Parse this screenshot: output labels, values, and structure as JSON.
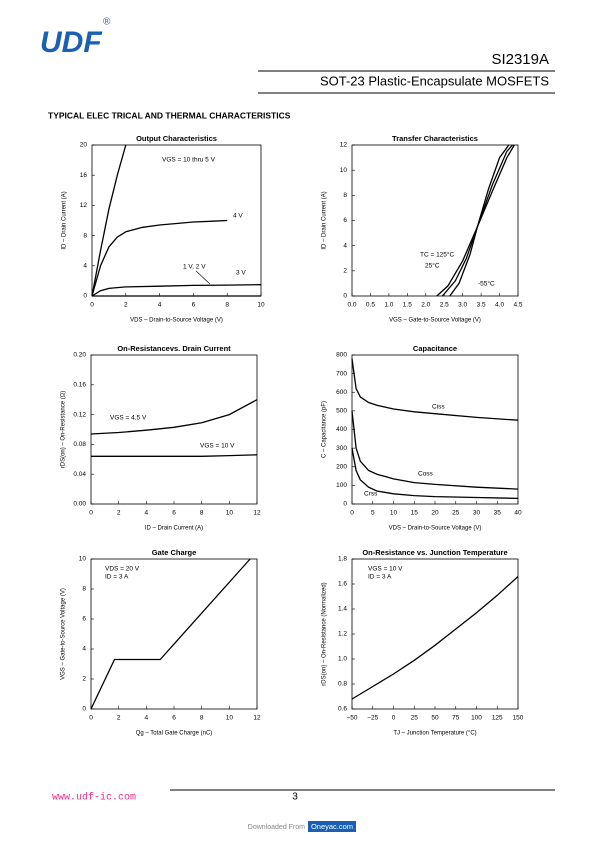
{
  "header": {
    "logo": "UDF",
    "registered": "®",
    "part": "SI2319A",
    "subtitle": "SOT-23 Plastic-Encapsulate MOSFETS"
  },
  "section_title": "TYPICAL ELEC TRICAL AND THERMAL CHARACTERISTICS",
  "charts": [
    {
      "type": "line",
      "title": "Output Characteristics",
      "xlabel": "VDS – Drain-to-Source Voltage (V)",
      "ylabel": "ID – Drain Current (A)",
      "xlim": [
        0,
        10
      ],
      "ylim": [
        0,
        20
      ],
      "xticks": [
        0,
        2,
        4,
        6,
        8,
        10
      ],
      "yticks": [
        0,
        4,
        8,
        12,
        16,
        20
      ],
      "series": [
        {
          "name": "VGS = 10 thru 5 V",
          "color": "#000000",
          "x": [
            0,
            0.5,
            1,
            1.5,
            2
          ],
          "y": [
            0,
            6,
            11.5,
            16,
            20
          ]
        },
        {
          "name": "4 V",
          "color": "#000000",
          "x": [
            0,
            0.5,
            1,
            1.5,
            2,
            3,
            4,
            5,
            6,
            7,
            8
          ],
          "y": [
            0,
            4,
            6.5,
            7.8,
            8.5,
            9.1,
            9.4,
            9.6,
            9.8,
            9.9,
            10
          ]
        },
        {
          "name": "3 V",
          "color": "#000000",
          "x": [
            0,
            0.5,
            1,
            2,
            4,
            6,
            8,
            10
          ],
          "y": [
            0,
            0.7,
            1,
            1.2,
            1.3,
            1.4,
            1.45,
            1.5
          ]
        },
        {
          "name": "1 V, 2 V",
          "color": "#000000",
          "x": [
            0,
            10
          ],
          "y": [
            0,
            0
          ]
        }
      ]
    },
    {
      "type": "line",
      "title": "Transfer Characteristics",
      "xlabel": "VGS – Gate-to-Source Voltage (V)",
      "ylabel": "ID – Drain Current (A)",
      "xlim": [
        0,
        4.5
      ],
      "ylim": [
        0,
        12
      ],
      "xticks": [
        {
          "value": 0,
          "label": "0.0"
        },
        0.5,
        {
          "value": 1,
          "label": "1.0"
        },
        1.5,
        {
          "value": 2,
          "label": "2.0"
        },
        2.5,
        {
          "value": 3,
          "label": "3.0"
        },
        3.5,
        {
          "value": 4,
          "label": "4.0"
        },
        4.5
      ],
      "yticks": [
        0,
        2,
        4,
        6,
        8,
        10,
        12
      ],
      "series": [
        {
          "name": "TC = 125°C",
          "color": "#000000",
          "x": [
            2.3,
            2.6,
            3.0,
            3.4,
            3.8,
            4.2,
            4.4
          ],
          "y": [
            0,
            0.8,
            2.8,
            5.5,
            8.3,
            11,
            12
          ]
        },
        {
          "name": "25°C",
          "color": "#000000",
          "x": [
            2.45,
            2.8,
            3.1,
            3.4,
            3.8,
            4.2,
            4.35
          ],
          "y": [
            0,
            1.2,
            3,
            5.5,
            8.8,
            11.5,
            12
          ]
        },
        {
          "name": "-55°C",
          "color": "#000000",
          "x": [
            2.65,
            2.9,
            3.2,
            3.4,
            3.7,
            4.0,
            4.25
          ],
          "y": [
            0,
            1,
            3.3,
            5.5,
            8.5,
            11,
            12
          ]
        }
      ]
    },
    {
      "type": "line",
      "title": "On-Resistancevs. Drain Current",
      "xlabel": "ID – Drain Current (A)",
      "ylabel": "rDS(on) – On-Resistance (Ω)",
      "xlim": [
        0,
        12
      ],
      "ylim": [
        0,
        0.2
      ],
      "xticks": [
        0,
        2,
        4,
        6,
        8,
        10,
        12
      ],
      "yticks": [
        {
          "value": 0,
          "label": "0.00"
        },
        0.04,
        0.08,
        0.12,
        0.16,
        {
          "value": 0.2,
          "label": "0.20"
        }
      ],
      "series": [
        {
          "name": "VGS = 4.5 V",
          "color": "#000000",
          "x": [
            0,
            2,
            4,
            6,
            8,
            10,
            12
          ],
          "y": [
            0.094,
            0.096,
            0.099,
            0.103,
            0.109,
            0.12,
            0.14
          ]
        },
        {
          "name": "VGS = 10 V",
          "color": "#000000",
          "x": [
            0,
            2,
            4,
            6,
            8,
            10,
            12
          ],
          "y": [
            0.064,
            0.064,
            0.064,
            0.064,
            0.064,
            0.065,
            0.066
          ]
        }
      ]
    },
    {
      "type": "line",
      "title": "Capacitance",
      "xlabel": "VDS – Drain-to-Source Voltage (V)",
      "ylabel": "C – Capacitance (pF)",
      "xlim": [
        0,
        40
      ],
      "ylim": [
        0,
        800
      ],
      "xticks": [
        0,
        5,
        10,
        15,
        20,
        25,
        30,
        35,
        40
      ],
      "yticks": [
        0,
        100,
        200,
        300,
        400,
        500,
        600,
        700,
        800
      ],
      "series": [
        {
          "name": "Ciss",
          "color": "#000000",
          "x": [
            0,
            1,
            2,
            4,
            6,
            10,
            15,
            20,
            30,
            40
          ],
          "y": [
            780,
            620,
            575,
            545,
            530,
            510,
            495,
            485,
            465,
            450
          ]
        },
        {
          "name": "Coss",
          "color": "#000000",
          "x": [
            0,
            1,
            2,
            4,
            6,
            10,
            15,
            20,
            30,
            40
          ],
          "y": [
            500,
            300,
            230,
            180,
            160,
            135,
            115,
            105,
            90,
            80
          ]
        },
        {
          "name": "Crss",
          "color": "#000000",
          "x": [
            0,
            1,
            2,
            4,
            6,
            10,
            15,
            20,
            30,
            40
          ],
          "y": [
            300,
            180,
            130,
            90,
            70,
            55,
            45,
            40,
            35,
            30
          ]
        }
      ]
    },
    {
      "type": "line",
      "title": "Gate Charge",
      "xlabel": "Qg – Total Gate Charge (nC)",
      "ylabel": "VGS – Gate-to-Source Voltage (V)",
      "xlim": [
        0,
        12
      ],
      "ylim": [
        0,
        10
      ],
      "xticks": [
        0,
        2,
        4,
        6,
        8,
        10,
        12
      ],
      "yticks": [
        0,
        2,
        4,
        6,
        8,
        10
      ],
      "annotations": [
        "VDS = 20 V",
        "ID = 3 A"
      ],
      "series": [
        {
          "color": "#000000",
          "x": [
            0,
            1.7,
            5.0,
            11.5
          ],
          "y": [
            0,
            3.3,
            3.3,
            10
          ]
        }
      ]
    },
    {
      "type": "line",
      "title": "On-Resistance vs. Junction Temperature",
      "xlabel": "TJ – Junction Temperature (°C)",
      "ylabel": "rDS(on) – On-Resistance (Normalized)",
      "xlim": [
        -50,
        150
      ],
      "ylim": [
        0.6,
        1.8
      ],
      "xticks": [
        {
          "value": -50,
          "label": "−50"
        },
        {
          "value": -25,
          "label": "−25"
        },
        0,
        25,
        50,
        75,
        100,
        125,
        150
      ],
      "yticks": [
        0.6,
        0.8,
        {
          "value": 1,
          "label": "1.0"
        },
        1.2,
        1.4,
        1.6,
        1.8
      ],
      "annotations": [
        "VGS = 10 V",
        "ID = 3 A"
      ],
      "series": [
        {
          "color": "#000000",
          "x": [
            -50,
            -25,
            0,
            25,
            50,
            75,
            100,
            125,
            150
          ],
          "y": [
            0.68,
            0.78,
            0.88,
            0.99,
            1.11,
            1.24,
            1.37,
            1.51,
            1.66
          ]
        }
      ]
    }
  ],
  "footer": {
    "url": "www.udf-ic.com",
    "page": 3,
    "download": "Downloaded From",
    "source": "Oneyac.com"
  }
}
